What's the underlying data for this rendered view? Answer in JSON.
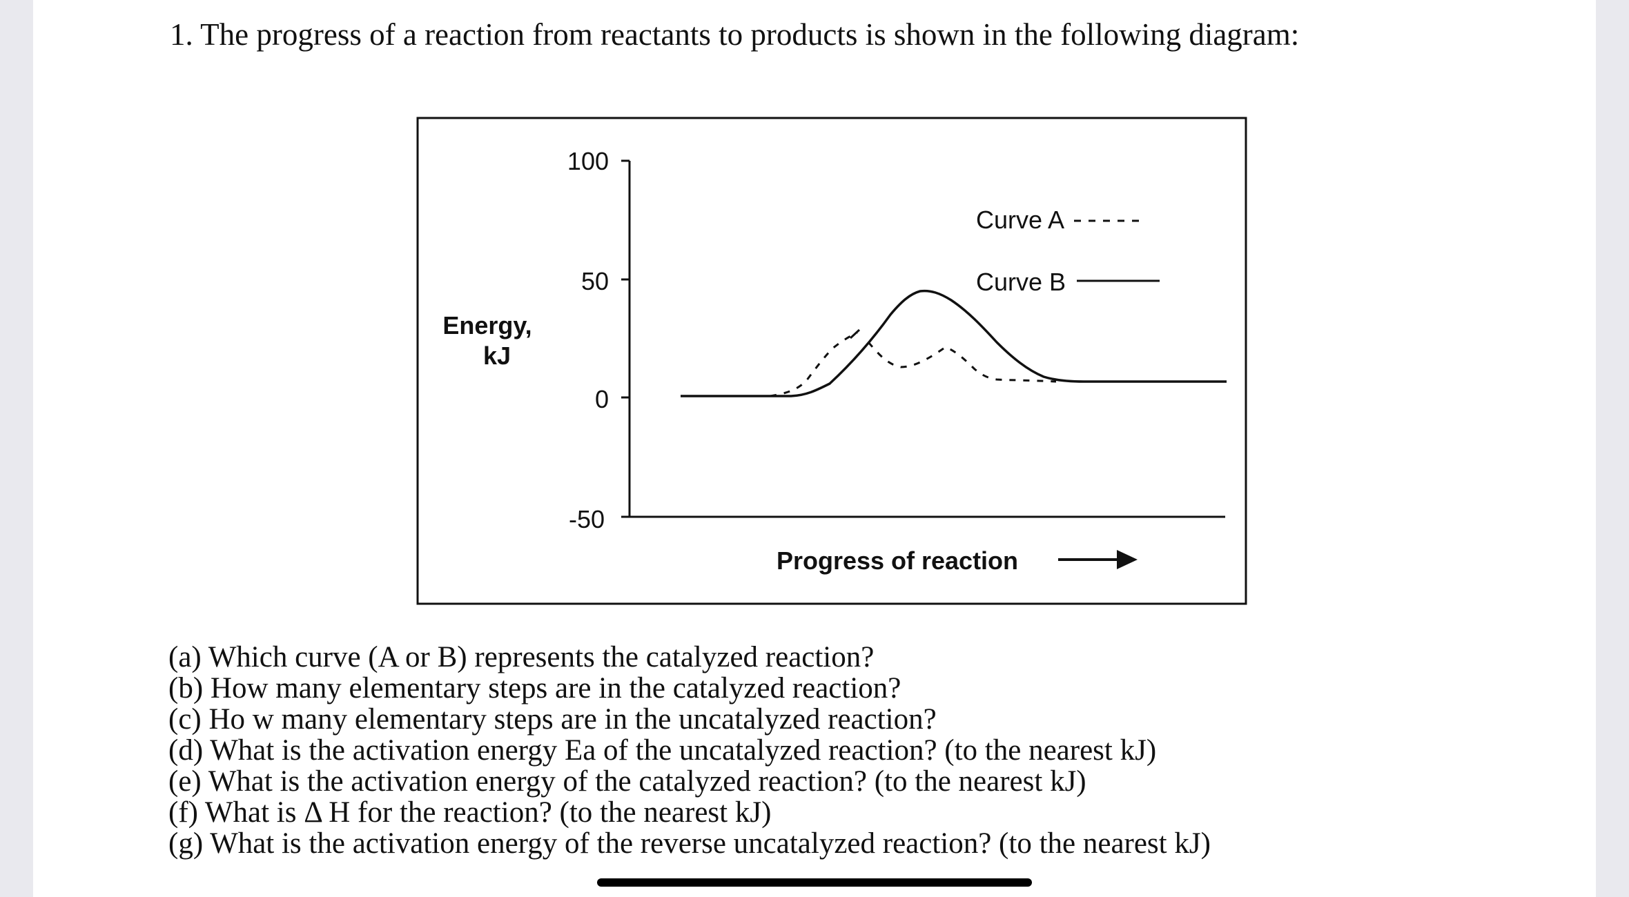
{
  "question": {
    "title": "1. The progress of a reaction from reactants to products is shown in the following diagram:",
    "items": [
      "(a) Which curve (A or B) represents the catalyzed reaction?",
      "(b) How many elementary steps are in the catalyzed reaction?",
      "(c) Ho w many elementary steps are in the uncatalyzed reaction?",
      "(d) What is the activation energy Ea of the uncatalyzed reaction? (to the nearest kJ)",
      "(e) What is the activation energy of the catalyzed reaction? (to the nearest kJ)",
      "(f) What is Δ  H for the reaction? (to the nearest kJ)",
      "(g) What is the activation energy of the reverse uncatalyzed reaction? (to the nearest kJ)"
    ]
  },
  "diagram": {
    "y_axis_title_line1": "Energy,",
    "y_axis_title_line2": "kJ",
    "x_axis_title": "Progress of reaction",
    "y_ticks": [
      "100",
      "50",
      "0",
      "-50"
    ],
    "legend": [
      {
        "label": "Curve A",
        "style": "dashed"
      },
      {
        "label": "Curve B",
        "style": "solid"
      }
    ],
    "colors": {
      "line": "#111111",
      "background": "#ffffff"
    }
  }
}
